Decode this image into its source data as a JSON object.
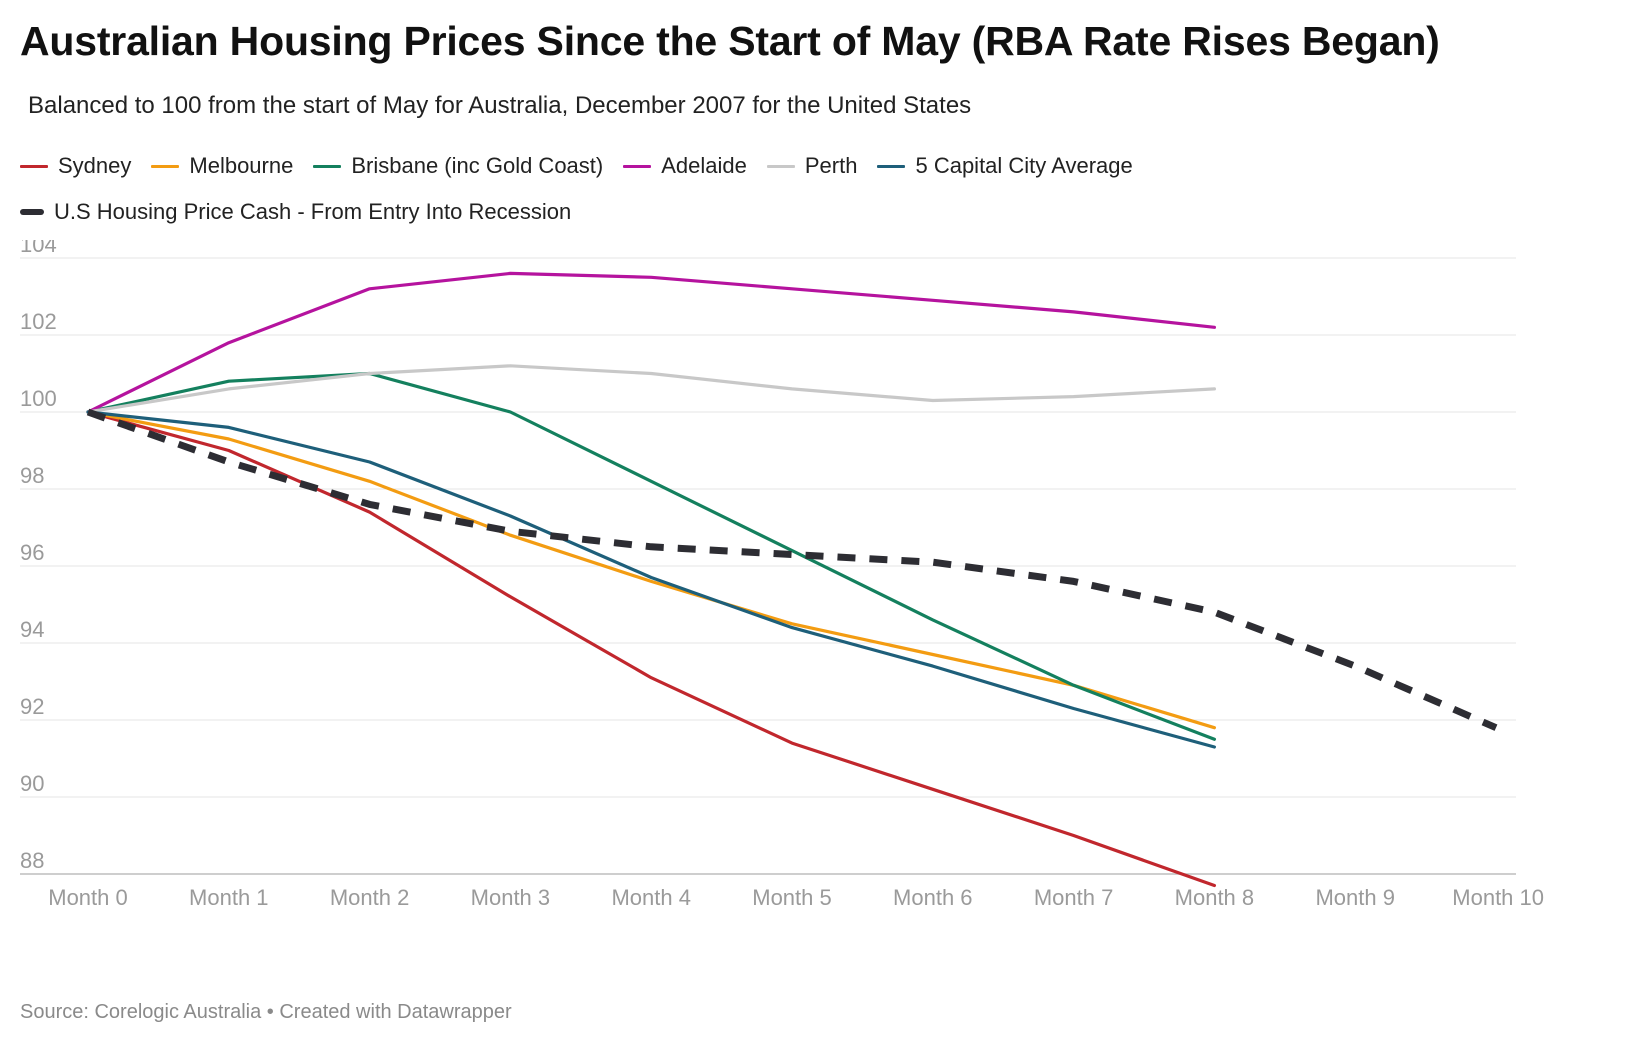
{
  "title": "Australian Housing Prices Since the Start of May (RBA Rate Rises Began)",
  "subtitle": "Balanced to 100 from the start of May for Australia, December 2007 for the United States",
  "source": "Source: Corelogic Australia • Created with Datawrapper",
  "chart_data": {
    "type": "line",
    "title": "Australian Housing Prices Since the Start of May (RBA Rate Rises Began)",
    "xlabel": "",
    "ylabel": "",
    "x": [
      "Month 0",
      "Month 1",
      "Month 2",
      "Month 3",
      "Month 4",
      "Month 5",
      "Month 6",
      "Month 7",
      "Month 8",
      "Month 9",
      "Month 10"
    ],
    "ylim": [
      88,
      104
    ],
    "yticks": [
      88,
      90,
      92,
      94,
      96,
      98,
      100,
      102,
      104
    ],
    "grid": "horizontal",
    "legend_position": "top",
    "series": [
      {
        "name": "Sydney",
        "color": "#c1272d",
        "style": "solid",
        "values": [
          100,
          99.0,
          97.4,
          95.2,
          93.1,
          91.4,
          90.2,
          89.0,
          87.7,
          null,
          null
        ]
      },
      {
        "name": "Melbourne",
        "color": "#f39c12",
        "style": "solid",
        "values": [
          100,
          99.3,
          98.2,
          96.8,
          95.6,
          94.5,
          93.7,
          92.9,
          91.8,
          null,
          null
        ]
      },
      {
        "name": "Brisbane (inc Gold Coast)",
        "color": "#14805e",
        "style": "solid",
        "values": [
          100,
          100.8,
          101.0,
          100.0,
          98.2,
          96.4,
          94.6,
          92.9,
          91.5,
          null,
          null
        ]
      },
      {
        "name": "Adelaide",
        "color": "#b5139e",
        "style": "solid",
        "values": [
          100,
          101.8,
          103.2,
          103.6,
          103.5,
          103.2,
          102.9,
          102.6,
          102.2,
          null,
          null
        ]
      },
      {
        "name": "Perth",
        "color": "#c8c8c8",
        "style": "solid",
        "values": [
          100,
          100.6,
          101.0,
          101.2,
          101.0,
          100.6,
          100.3,
          100.4,
          100.6,
          null,
          null
        ]
      },
      {
        "name": "5 Capital City Average",
        "color": "#1e5f7a",
        "style": "solid",
        "values": [
          100,
          99.6,
          98.7,
          97.3,
          95.7,
          94.4,
          93.4,
          92.3,
          91.3,
          null,
          null
        ]
      },
      {
        "name": "U.S Housing Price Cash - From Entry Into Recession",
        "color": "#2d2d33",
        "style": "dashed",
        "values": [
          100,
          98.7,
          97.6,
          96.9,
          96.5,
          96.3,
          96.1,
          95.6,
          94.8,
          93.4,
          91.8
        ]
      }
    ]
  }
}
